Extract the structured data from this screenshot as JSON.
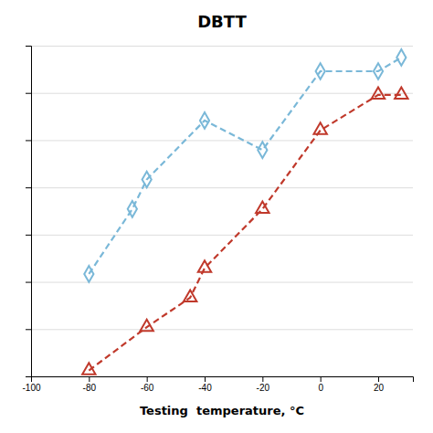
{
  "chart_data": {
    "type": "line",
    "title": "DBTT",
    "xlabel": "Testing  temperature, °C",
    "series": [
      {
        "color": "#7ab8d8",
        "marker": "diamond",
        "line_style": "dashed",
        "x": [
          -80,
          -65,
          -60,
          -40,
          -20,
          0,
          20,
          28
        ],
        "values": [
          52,
          85,
          100,
          130,
          115,
          155,
          155,
          162
        ]
      },
      {
        "color": "#c0392b",
        "marker": "triangle",
        "line_style": "dashed",
        "x": [
          -80,
          -60,
          -45,
          -40,
          -20,
          0,
          20,
          28
        ],
        "values": [
          3,
          25,
          40,
          55,
          85,
          125,
          143,
          143
        ]
      }
    ],
    "xlim": [
      -100,
      32
    ],
    "ylim": [
      0,
      168
    ],
    "xticks": [
      -100,
      -80,
      -60,
      -40,
      -20,
      0,
      20
    ],
    "yticks": [
      0,
      24,
      48,
      72,
      96,
      120,
      144,
      168
    ],
    "grid": true,
    "tick_labels": "x"
  }
}
